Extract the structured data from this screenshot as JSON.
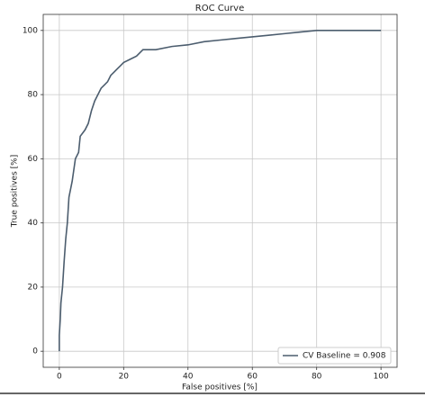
{
  "chart_data": {
    "type": "line",
    "title": "ROC Curve",
    "x_label": "False positives [%]",
    "y_label": "True positives [%]",
    "x": [
      0,
      0,
      0.3,
      0.5,
      1,
      1.5,
      2,
      2.5,
      3,
      4,
      5,
      6,
      6.5,
      8,
      9,
      10,
      11,
      12,
      13,
      14,
      15,
      16,
      17,
      18,
      19,
      20,
      22,
      24,
      26,
      30,
      35,
      40,
      45,
      50,
      55,
      60,
      65,
      70,
      75,
      80,
      100
    ],
    "series": [
      {
        "name": "CV Baseline = 0.908",
        "color": "#4c5d6e",
        "values": [
          0,
          5,
          10,
          15,
          20,
          28,
          35,
          40,
          48,
          53,
          60,
          62,
          67,
          69,
          71,
          75,
          78,
          80,
          82,
          83,
          84,
          86,
          87,
          88,
          89,
          90,
          91,
          92,
          94,
          94,
          95,
          95.5,
          96.5,
          97,
          97.5,
          98,
          98.5,
          99,
          99.5,
          100,
          100
        ]
      }
    ],
    "xlim": [
      -5,
      105
    ],
    "ylim": [
      -5,
      105
    ],
    "xticks": [
      0,
      20,
      40,
      60,
      80,
      100
    ],
    "yticks": [
      0,
      20,
      40,
      60,
      80,
      100
    ],
    "grid": true,
    "legend": "lower right"
  }
}
